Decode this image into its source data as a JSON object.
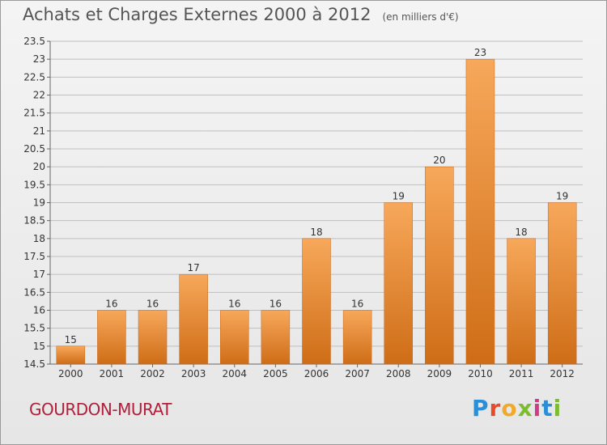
{
  "header": {
    "title": "Achats et Charges Externes 2000 à 2012",
    "unit": "(en milliers d'€)"
  },
  "footer": {
    "city": "GOURDON-MURAT",
    "logo_letters": [
      "P",
      "r",
      "o",
      "x",
      "i",
      "t",
      "i"
    ]
  },
  "colors": {
    "bar_top": "#f7a85a",
    "bar_bottom": "#cf6d17",
    "grid": "#bfbfbf",
    "city": "#b0203a"
  },
  "chart_data": {
    "type": "bar",
    "title": "Achats et Charges Externes 2000 à 2012",
    "subtitle": "(en milliers d'€)",
    "categories": [
      "2000",
      "2001",
      "2002",
      "2003",
      "2004",
      "2005",
      "2006",
      "2007",
      "2008",
      "2009",
      "2010",
      "2011",
      "2012"
    ],
    "values": [
      15,
      16,
      16,
      17,
      16,
      16,
      18,
      16,
      19,
      20,
      23,
      18,
      19
    ],
    "data_labels": [
      "15",
      "16",
      "16",
      "17",
      "16",
      "16",
      "18",
      "16",
      "19",
      "20",
      "23",
      "18",
      "19"
    ],
    "ylim": [
      14.5,
      23.5
    ],
    "yticks": [
      14.5,
      15,
      15.5,
      16,
      16.5,
      17,
      17.5,
      18,
      18.5,
      19,
      19.5,
      20,
      20.5,
      21,
      21.5,
      22,
      22.5,
      23,
      23.5
    ],
    "ytick_labels": [
      "14.5",
      "15",
      "15.5",
      "16",
      "16.5",
      "17",
      "17.5",
      "18",
      "18.5",
      "19",
      "19.5",
      "20",
      "20.5",
      "21",
      "21.5",
      "22",
      "22.5",
      "23",
      "23.5"
    ],
    "grid": true,
    "xlabel": "",
    "ylabel": ""
  }
}
